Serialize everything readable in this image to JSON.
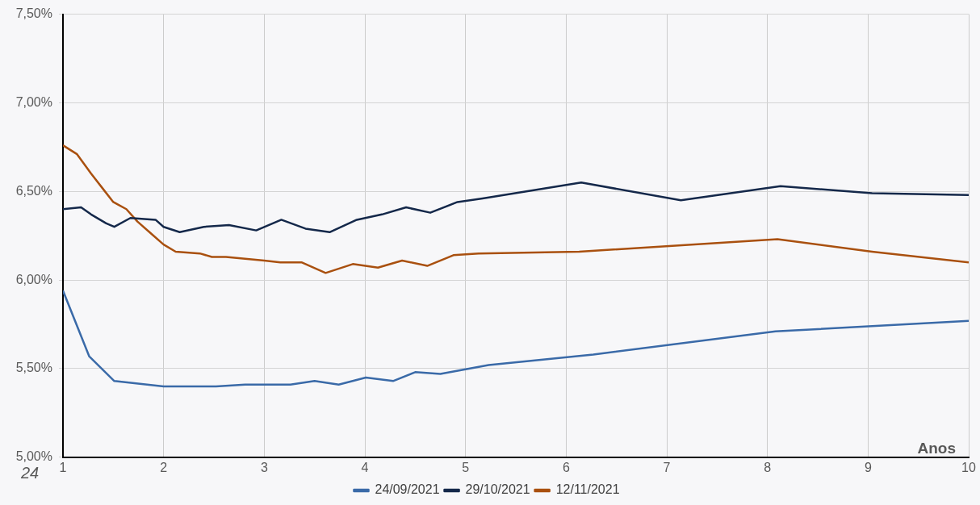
{
  "chart_data": {
    "type": "line",
    "xlabel": "Anos",
    "annotations": [
      "24"
    ],
    "xlim": [
      1,
      10
    ],
    "xticks": [
      1,
      2,
      3,
      4,
      5,
      6,
      7,
      8,
      9,
      10
    ],
    "ylim": [
      5,
      7.5
    ],
    "yticks": [
      {
        "value": 5,
        "label": "5,00%"
      },
      {
        "value": 5.5,
        "label": "5,50%"
      },
      {
        "value": 6,
        "label": "6,00%"
      },
      {
        "value": 6.5,
        "label": "6,50%"
      },
      {
        "value": 7,
        "label": "7,00%"
      },
      {
        "value": 7.5,
        "label": "7,50%"
      }
    ],
    "grid": true,
    "legend": "bottom",
    "marker": "none",
    "line_style": "solid",
    "series": [
      {
        "name": "24/09/2021",
        "color": "#3a6aa8",
        "x": [
          1,
          1.26,
          1.51,
          2.0,
          2.52,
          2.81,
          3.26,
          3.5,
          3.74,
          4.01,
          4.28,
          4.5,
          4.75,
          5.23,
          6.27,
          8.08,
          10
        ],
        "values": [
          5.94,
          5.57,
          5.43,
          5.4,
          5.4,
          5.41,
          5.41,
          5.43,
          5.41,
          5.45,
          5.43,
          5.48,
          5.47,
          5.52,
          5.58,
          5.71,
          5.77
        ]
      },
      {
        "name": "29/10/2021",
        "color": "#14284a",
        "x": [
          1,
          1.18,
          1.28,
          1.43,
          1.51,
          1.67,
          1.92,
          2.0,
          2.16,
          2.4,
          2.65,
          2.92,
          3.17,
          3.41,
          3.65,
          3.92,
          4.17,
          4.41,
          4.65,
          4.92,
          5.17,
          6.15,
          7.14,
          8.13,
          9.04,
          10
        ],
        "values": [
          6.4,
          6.41,
          6.37,
          6.32,
          6.3,
          6.35,
          6.34,
          6.3,
          6.27,
          6.3,
          6.31,
          6.28,
          6.34,
          6.29,
          6.27,
          6.34,
          6.37,
          6.41,
          6.38,
          6.44,
          6.46,
          6.55,
          6.45,
          6.53,
          6.49,
          6.48
        ]
      },
      {
        "name": "12/11/2021",
        "color": "#a9500f",
        "x": [
          1,
          1.14,
          1.28,
          1.39,
          1.5,
          1.63,
          1.74,
          1.88,
          2.0,
          2.12,
          2.36,
          2.48,
          2.62,
          3.0,
          3.16,
          3.37,
          3.61,
          3.88,
          4.13,
          4.37,
          4.62,
          4.88,
          5.13,
          6.13,
          8.1,
          9.04,
          10
        ],
        "values": [
          6.76,
          6.71,
          6.6,
          6.52,
          6.44,
          6.4,
          6.33,
          6.26,
          6.2,
          6.16,
          6.15,
          6.13,
          6.13,
          6.11,
          6.1,
          6.1,
          6.04,
          6.09,
          6.07,
          6.11,
          6.08,
          6.14,
          6.15,
          6.16,
          6.23,
          6.16,
          6.1
        ]
      }
    ]
  }
}
